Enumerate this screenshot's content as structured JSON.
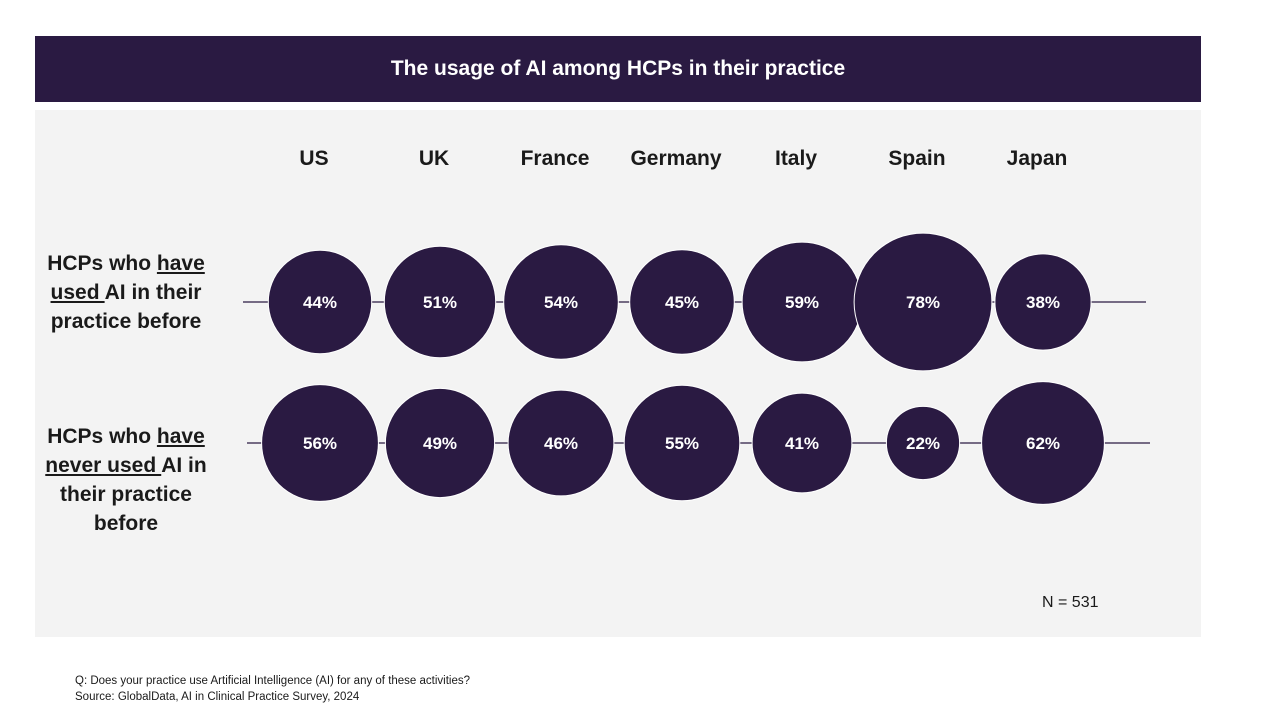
{
  "header": {
    "title": "The usage of AI among HCPs in their practice"
  },
  "row_labels": {
    "used": {
      "pre": "HCPs who ",
      "u1": "have",
      "u2": "used ",
      "post": "AI in their practice before"
    },
    "never": {
      "pre": "HCPs who ",
      "u1": "have",
      "u2": "never used ",
      "post": "AI in their practice before"
    }
  },
  "sample_size": "N = 531",
  "footnote": {
    "question": "Q: Does your practice use Artificial Intelligence (AI) for any of these activities?",
    "source": "Source: GlobalData, AI in Clinical Practice Survey, 2024"
  },
  "colors": {
    "bubble": "#2a1a42",
    "header": "#2a1a42",
    "panel": "#f3f3f3",
    "line": "#2a1a42"
  },
  "chart_data": {
    "type": "bubble",
    "title": "The usage of AI among HCPs in their practice",
    "categories": [
      "US",
      "UK",
      "France",
      "Germany",
      "Italy",
      "Spain",
      "Japan"
    ],
    "series": [
      {
        "name": "HCPs who have used AI in their practice before",
        "values": [
          44,
          51,
          54,
          45,
          59,
          78,
          38
        ],
        "unit": "%"
      },
      {
        "name": "HCPs who have never used AI in their practice before",
        "values": [
          56,
          49,
          46,
          55,
          41,
          22,
          62
        ],
        "unit": "%"
      }
    ]
  }
}
